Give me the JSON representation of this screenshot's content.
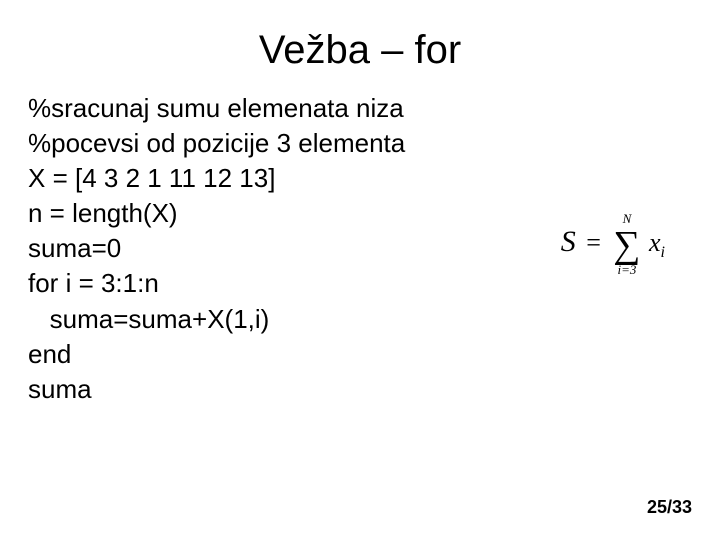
{
  "title": "Vežba – for",
  "code": {
    "l1": "%sracunaj sumu elemenata niza",
    "l2": "%pocevsi od pozicije 3 elementa",
    "l3": "X = [4 3 2 1 11 12 13]",
    "l4": "n = length(X)",
    "l5": "suma=0",
    "l6": "for i = 3:1:n",
    "l7": "   suma=suma+X(1,i)",
    "l8": "end",
    "l9": "suma"
  },
  "formula": {
    "lhs": "S",
    "eq": "=",
    "sum_upper": "N",
    "sum_lower": "i=3",
    "term_base": "x",
    "term_sub": "i"
  },
  "page": "25/33",
  "style": {
    "background": "#ffffff",
    "text_color": "#000000",
    "title_fontsize": 40,
    "body_fontsize": 26,
    "page_fontsize": 18
  }
}
